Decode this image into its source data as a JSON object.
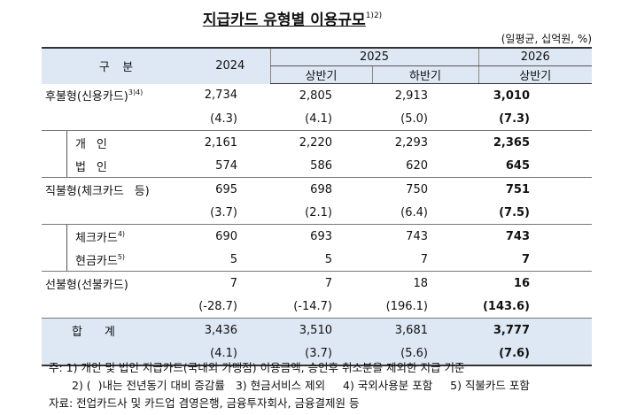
{
  "title": "지급카드 유형별 이용규모",
  "title_note": "1)2)",
  "unit": "(일평균, 십억원, %)",
  "header": {
    "label": "구 분",
    "years": [
      "2024",
      "2025",
      "2026"
    ],
    "halves": [
      "상반기",
      "하반기",
      "상반기"
    ]
  },
  "rows": [
    {
      "label": "후불형(신용카드)",
      "note": "3)4)",
      "cells": [
        "2,734",
        "2,805",
        "2,913",
        "3,010"
      ]
    },
    {
      "cells": [
        "(4.3)",
        "(4.1)",
        "(5.0)",
        "(7.3)"
      ]
    },
    {
      "label": "개 인",
      "cells": [
        "2,161",
        "2,220",
        "2,293",
        "2,365"
      ]
    },
    {
      "label": "법 인",
      "cells": [
        "574",
        "586",
        "620",
        "645"
      ]
    },
    {
      "label": "직불형(체크카드 등)",
      "cells": [
        "695",
        "698",
        "750",
        "751"
      ]
    },
    {
      "cells": [
        "(3.7)",
        "(2.1)",
        "(6.4)",
        "(7.5)"
      ]
    },
    {
      "label": "체크카드",
      "note": "4)",
      "cells": [
        "690",
        "693",
        "743",
        "743"
      ]
    },
    {
      "label": "현금카드",
      "note": "5)",
      "cells": [
        "5",
        "5",
        "7",
        "7"
      ]
    },
    {
      "label": "선불형(선불카드)",
      "cells": [
        "7",
        "7",
        "18",
        "16"
      ]
    },
    {
      "cells": [
        "(-28.7)",
        "(-14.7)",
        "(196.1)",
        "(143.6)"
      ]
    },
    {
      "label": "합 계",
      "cells": [
        "3,436",
        "3,510",
        "3,681",
        "3,777"
      ]
    },
    {
      "cells": [
        "(4.1)",
        "(3.7)",
        "(5.6)",
        "(7.6)"
      ]
    }
  ],
  "notes": [
    "주: 1) 개인 및 법인 지급카드(국내외 가맹점) 이용금액, 승인후 취소분을 제외한 지급 기준",
    "2) (  )내는 전년동기 대비 증감률   3) 현금서비스 제외     4) 국외사용분 포함     5) 직불카드 포함",
    "자료: 전업카드사 및 카드업 겸영은행, 금융투자회사, 금융결제원 등"
  ]
}
